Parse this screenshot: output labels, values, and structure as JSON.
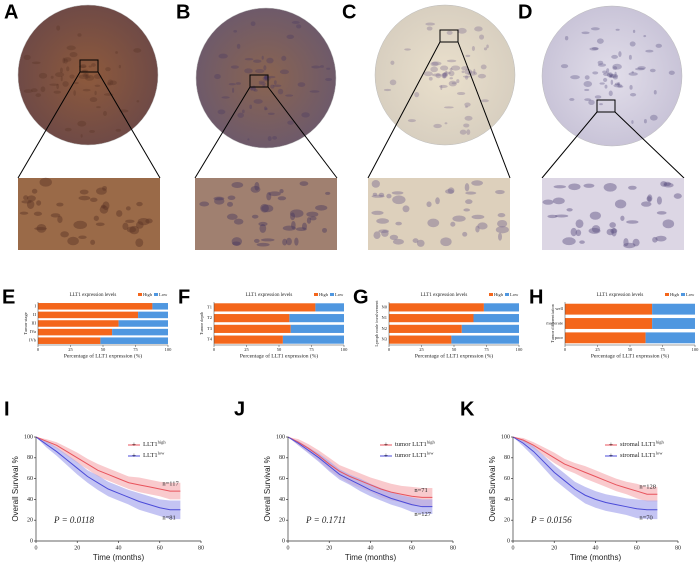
{
  "images": [
    {
      "panel": "A"
    },
    {
      "panel": "B"
    },
    {
      "panel": "C"
    },
    {
      "panel": "D"
    }
  ],
  "chart_data": [
    {
      "panel": "E",
      "type": "bar",
      "stacked": true,
      "orientation": "horizontal",
      "title": "LLT1 expression levels",
      "xlabel": "Percentage of LLT1 expression (%)",
      "ylabel": "Tumor stage",
      "categories": [
        "I",
        "II",
        "III",
        "IVa",
        "IVb"
      ],
      "series": [
        {
          "name": "High",
          "color": "#f4661b",
          "values": [
            88,
            77,
            62,
            57,
            48
          ]
        },
        {
          "name": "Low",
          "color": "#4f97e0",
          "values": [
            12,
            23,
            38,
            43,
            52
          ]
        }
      ],
      "xlim": [
        0,
        100
      ],
      "xticks": [
        0,
        25,
        50,
        75,
        100
      ]
    },
    {
      "panel": "F",
      "type": "bar",
      "stacked": true,
      "orientation": "horizontal",
      "title": "LLT1 expression levels",
      "xlabel": "Percentage of LLT1 expression (%)",
      "ylabel": "Tumor depth",
      "categories": [
        "T1",
        "T2",
        "T3",
        "T4"
      ],
      "series": [
        {
          "name": "High",
          "color": "#f4661b",
          "values": [
            78,
            58,
            59,
            53
          ]
        },
        {
          "name": "Low",
          "color": "#4f97e0",
          "values": [
            22,
            42,
            41,
            47
          ]
        }
      ],
      "xlim": [
        0,
        100
      ],
      "xticks": [
        0,
        25,
        50,
        75,
        100
      ]
    },
    {
      "panel": "G",
      "type": "bar",
      "stacked": true,
      "orientation": "horizontal",
      "title": "LLT1 expression levels",
      "xlabel": "Percentage of LLT1 expression (%)",
      "ylabel": "Lymph node involvement",
      "categories": [
        "N0",
        "N1",
        "N2",
        "N3"
      ],
      "series": [
        {
          "name": "High",
          "color": "#f4661b",
          "values": [
            73,
            65,
            56,
            48
          ]
        },
        {
          "name": "Low",
          "color": "#4f97e0",
          "values": [
            27,
            35,
            44,
            52
          ]
        }
      ],
      "xlim": [
        0,
        100
      ],
      "xticks": [
        0,
        25,
        50,
        75,
        100
      ]
    },
    {
      "panel": "H",
      "type": "bar",
      "stacked": true,
      "orientation": "horizontal",
      "title": "LLT1 expression levels",
      "xlabel": "Percentage of LLT1 expression (%)",
      "ylabel": "Tumor differentiation",
      "categories": [
        "well",
        "moderate",
        "poor"
      ],
      "series": [
        {
          "name": "High",
          "color": "#f4661b",
          "values": [
            67,
            67,
            62
          ]
        },
        {
          "name": "Low",
          "color": "#4f97e0",
          "values": [
            33,
            33,
            38
          ]
        }
      ],
      "xlim": [
        0,
        100
      ],
      "xticks": [
        0,
        25,
        50,
        75,
        100
      ]
    },
    {
      "panel": "I",
      "type": "line",
      "xlabel": "Time (months)",
      "ylabel": "Overall Survival %",
      "p_label": "P = 0.0118",
      "x": [
        0,
        5,
        10,
        15,
        20,
        25,
        30,
        35,
        40,
        45,
        50,
        55,
        60,
        65,
        70
      ],
      "series": [
        {
          "name": "LLT1",
          "name_sup": "high",
          "n_label": "n=117",
          "color": "#e8535c",
          "band_color": "#f6b3b8",
          "values": [
            100,
            96,
            92,
            86,
            80,
            74,
            68,
            64,
            60,
            56,
            54,
            52,
            50,
            48,
            48
          ],
          "lower": [
            100,
            94,
            89,
            82,
            75,
            69,
            62,
            58,
            54,
            50,
            47,
            45,
            43,
            40,
            40
          ],
          "upper": [
            100,
            98,
            95,
            90,
            85,
            79,
            74,
            70,
            66,
            62,
            61,
            59,
            57,
            56,
            56
          ]
        },
        {
          "name": "LLT1",
          "name_sup": "low",
          "n_label": "n=81",
          "color": "#4b4bd8",
          "band_color": "#ababee",
          "values": [
            100,
            93,
            86,
            78,
            70,
            62,
            56,
            50,
            46,
            42,
            38,
            35,
            32,
            30,
            30
          ],
          "lower": [
            100,
            90,
            82,
            73,
            64,
            56,
            49,
            43,
            39,
            35,
            30,
            27,
            24,
            21,
            21
          ],
          "upper": [
            100,
            96,
            90,
            83,
            76,
            68,
            63,
            57,
            53,
            49,
            46,
            43,
            40,
            39,
            39
          ]
        }
      ],
      "xlim": [
        0,
        80
      ],
      "xticks": [
        0,
        20,
        40,
        60,
        80
      ],
      "ylim": [
        0,
        100
      ],
      "yticks": [
        0,
        20,
        40,
        60,
        80,
        100
      ]
    },
    {
      "panel": "J",
      "type": "line",
      "xlabel": "Time (months)",
      "ylabel": "Overall Survival %",
      "p_label": "P = 0.1711",
      "x": [
        0,
        5,
        10,
        15,
        20,
        25,
        30,
        35,
        40,
        45,
        50,
        55,
        60,
        65,
        70
      ],
      "series": [
        {
          "name": "tumor LLT1",
          "name_sup": "high",
          "n_label": "n=71",
          "color": "#e8535c",
          "band_color": "#f6b3b8",
          "values": [
            100,
            95,
            89,
            82,
            74,
            67,
            62,
            58,
            54,
            50,
            47,
            45,
            43,
            42,
            42
          ],
          "lower": [
            100,
            92,
            85,
            77,
            68,
            61,
            55,
            51,
            47,
            42,
            39,
            37,
            34,
            33,
            33
          ],
          "upper": [
            100,
            98,
            93,
            87,
            80,
            73,
            69,
            65,
            61,
            58,
            55,
            53,
            52,
            51,
            51
          ]
        },
        {
          "name": "tumor LLT1",
          "name_sup": "low",
          "n_label": "n=127",
          "color": "#4b4bd8",
          "band_color": "#ababee",
          "values": [
            100,
            94,
            87,
            80,
            72,
            64,
            59,
            54,
            49,
            45,
            41,
            38,
            35,
            33,
            33
          ],
          "lower": [
            100,
            92,
            84,
            76,
            67,
            59,
            54,
            48,
            43,
            39,
            35,
            32,
            28,
            26,
            26
          ],
          "upper": [
            100,
            96,
            90,
            84,
            77,
            69,
            64,
            60,
            55,
            51,
            47,
            44,
            42,
            40,
            40
          ]
        }
      ],
      "xlim": [
        0,
        80
      ],
      "xticks": [
        0,
        20,
        40,
        60,
        80
      ],
      "ylim": [
        0,
        100
      ],
      "yticks": [
        0,
        20,
        40,
        60,
        80,
        100
      ]
    },
    {
      "panel": "K",
      "type": "line",
      "xlabel": "Time (months)",
      "ylabel": "Overall Survival %",
      "p_label": "P = 0.0156",
      "x": [
        0,
        5,
        10,
        15,
        20,
        25,
        30,
        35,
        40,
        45,
        50,
        55,
        60,
        65,
        70
      ],
      "series": [
        {
          "name": "stromal LLT1",
          "name_sup": "high",
          "n_label": "n=128",
          "color": "#e8535c",
          "band_color": "#f6b3b8",
          "values": [
            100,
            97,
            92,
            86,
            80,
            74,
            70,
            66,
            62,
            58,
            54,
            51,
            48,
            45,
            45
          ],
          "lower": [
            100,
            95,
            89,
            82,
            75,
            69,
            65,
            60,
            56,
            52,
            48,
            45,
            41,
            38,
            38
          ],
          "upper": [
            100,
            99,
            95,
            90,
            85,
            79,
            75,
            72,
            68,
            64,
            60,
            57,
            55,
            52,
            52
          ]
        },
        {
          "name": "stromal LLT1",
          "name_sup": "low",
          "n_label": "n=70",
          "color": "#4b4bd8",
          "band_color": "#ababee",
          "values": [
            100,
            94,
            86,
            76,
            66,
            58,
            50,
            44,
            40,
            37,
            35,
            33,
            31,
            30,
            30
          ],
          "lower": [
            100,
            91,
            81,
            70,
            59,
            51,
            43,
            36,
            32,
            29,
            27,
            25,
            22,
            21,
            21
          ],
          "upper": [
            100,
            97,
            91,
            82,
            73,
            65,
            57,
            52,
            48,
            45,
            43,
            41,
            40,
            39,
            39
          ]
        }
      ],
      "xlim": [
        0,
        80
      ],
      "xticks": [
        0,
        20,
        40,
        60,
        80
      ],
      "ylim": [
        0,
        100
      ],
      "yticks": [
        0,
        20,
        40,
        60,
        80,
        100
      ]
    }
  ]
}
